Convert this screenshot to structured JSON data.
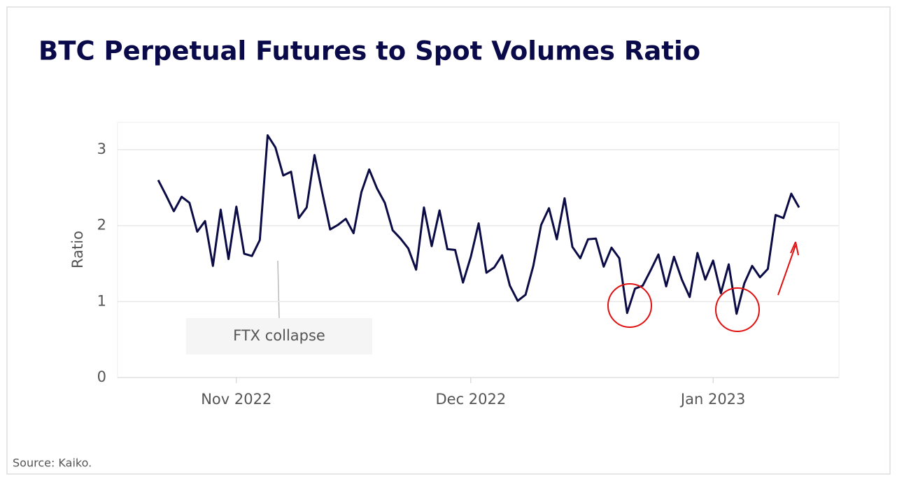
{
  "chart_data": {
    "type": "line",
    "title": "BTC Perpetual Futures to Spot Volumes Ratio",
    "y_label": "Ratio",
    "source": "Source: Kaiko.",
    "annotations": [
      {
        "text": "FTX collapse"
      }
    ],
    "color": "#0b0b45",
    "values": [
      2.6,
      2.4,
      2.19,
      2.38,
      2.3,
      1.92,
      2.06,
      1.47,
      2.21,
      1.56,
      2.25,
      1.63,
      1.6,
      1.81,
      3.19,
      3.03,
      2.66,
      2.71,
      2.1,
      2.24,
      2.93,
      2.43,
      1.95,
      2.01,
      2.09,
      1.9,
      2.44,
      2.74,
      2.49,
      2.3,
      1.94,
      1.83,
      1.7,
      1.42,
      2.24,
      1.73,
      2.2,
      1.69,
      1.68,
      1.25,
      1.59,
      2.03,
      1.38,
      1.45,
      1.61,
      1.21,
      1.01,
      1.09,
      1.47,
      2.01,
      2.23,
      1.82,
      2.36,
      1.72,
      1.57,
      1.82,
      1.83,
      1.46,
      1.71,
      1.57,
      0.85,
      1.17,
      1.21,
      1.41,
      1.62,
      1.2,
      1.59,
      1.29,
      1.06,
      1.64,
      1.29,
      1.54,
      1.11,
      1.49,
      0.84,
      1.24,
      1.47,
      1.32,
      1.43,
      2.14,
      2.1,
      2.42,
      2.24
    ],
    "xlim": [
      -5.2,
      87.1
    ],
    "xticks": [
      {
        "value": 10,
        "label": "Nov 2022"
      },
      {
        "value": 40,
        "label": "Dec 2022"
      },
      {
        "value": 71,
        "label": "Jan 2023"
      }
    ],
    "ylim": [
      0,
      3.36
    ],
    "yticks": [
      0,
      1,
      2,
      3
    ],
    "grid": true
  }
}
